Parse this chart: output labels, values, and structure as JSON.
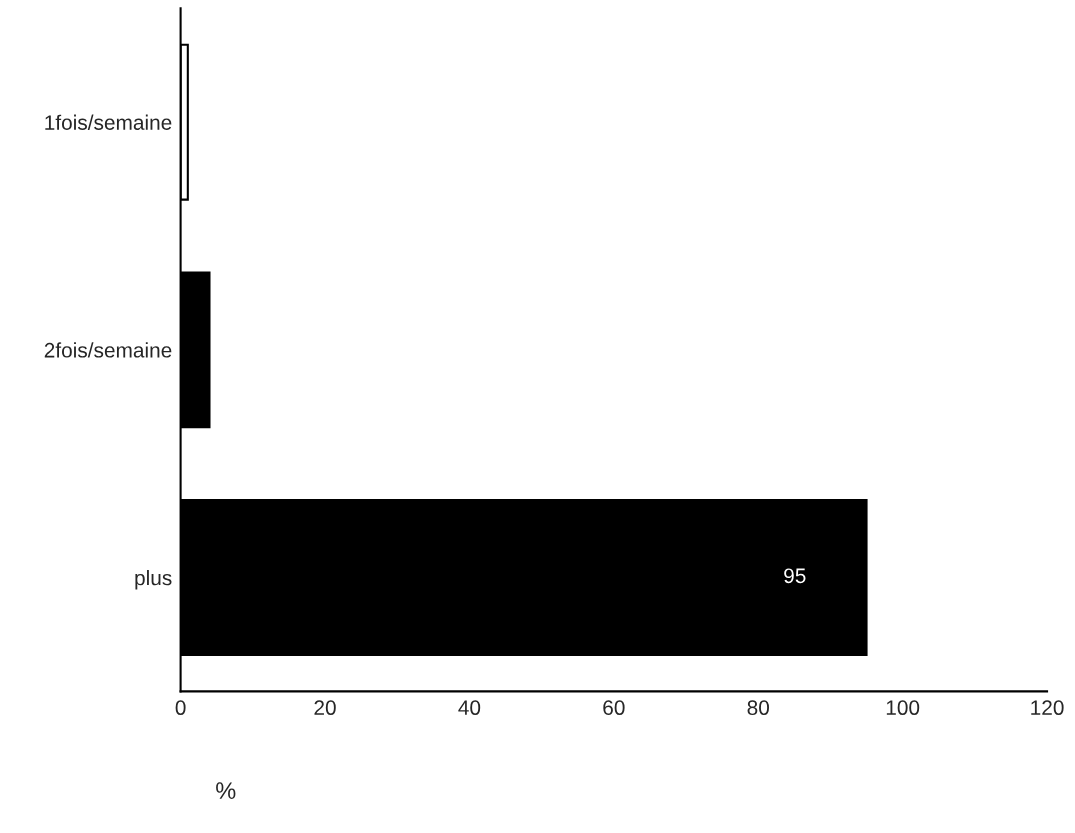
{
  "chart_data": {
    "type": "bar",
    "orientation": "horizontal",
    "xlabel": "%",
    "categories": [
      "1fois/semaine",
      "2fois/semaine",
      "plus"
    ],
    "values": [
      1,
      4,
      95
    ],
    "colors": [
      "#ffffff",
      "#000000",
      "#000000"
    ],
    "value_labels": [
      null,
      null,
      "95"
    ],
    "xlim": [
      0,
      120
    ],
    "xticks": [
      0,
      20,
      40,
      60,
      80,
      100,
      120
    ],
    "grid": false,
    "legend": false
  }
}
